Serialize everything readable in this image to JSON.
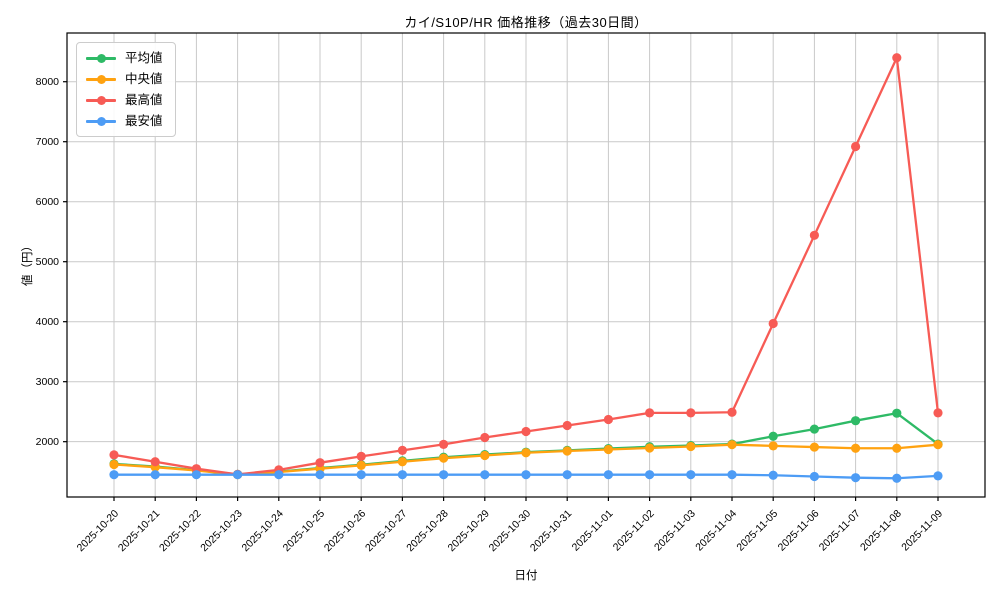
{
  "title": "カイ/S10P/HR 価格推移（過去30日間）",
  "chart_data": {
    "type": "line",
    "title": "カイ/S10P/HR 価格推移（過去30日間）",
    "xlabel": "日付",
    "ylabel": "値（円）",
    "grid": true,
    "legend_position": "upper left",
    "ylim": [
      1078,
      8812
    ],
    "yticks": [
      2000,
      3000,
      4000,
      5000,
      6000,
      7000,
      8000
    ],
    "x": [
      "2025-10-20",
      "2025-10-21",
      "2025-10-22",
      "2025-10-23",
      "2025-10-24",
      "2025-10-25",
      "2025-10-26",
      "2025-10-27",
      "2025-10-28",
      "2025-10-29",
      "2025-10-30",
      "2025-10-31",
      "2025-11-01",
      "2025-11-02",
      "2025-11-03",
      "2025-11-04",
      "2025-11-05",
      "2025-11-06",
      "2025-11-07",
      "2025-11-08",
      "2025-11-09"
    ],
    "series": [
      {
        "name": "平均値",
        "color": "#2eba66",
        "values": [
          1630,
          1585,
          1525,
          1455,
          1500,
          1560,
          1615,
          1680,
          1740,
          1785,
          1825,
          1855,
          1885,
          1915,
          1935,
          1960,
          2090,
          2210,
          2350,
          2475,
          1960
        ]
      },
      {
        "name": "中央値",
        "color": "#ffa210",
        "values": [
          1620,
          1575,
          1520,
          1450,
          1495,
          1550,
          1605,
          1665,
          1725,
          1770,
          1815,
          1845,
          1870,
          1895,
          1920,
          1950,
          1930,
          1910,
          1890,
          1890,
          1950
        ]
      },
      {
        "name": "最高値",
        "color": "#f75b55",
        "values": [
          1780,
          1665,
          1550,
          1455,
          1530,
          1650,
          1755,
          1855,
          1955,
          2070,
          2170,
          2270,
          2370,
          2480,
          2480,
          2490,
          3970,
          5440,
          6920,
          8400,
          2480
        ]
      },
      {
        "name": "最安値",
        "color": "#4d9cf5",
        "values": [
          1450,
          1450,
          1450,
          1450,
          1450,
          1450,
          1450,
          1450,
          1450,
          1450,
          1450,
          1450,
          1450,
          1450,
          1450,
          1450,
          1440,
          1420,
          1400,
          1390,
          1430
        ]
      }
    ]
  }
}
